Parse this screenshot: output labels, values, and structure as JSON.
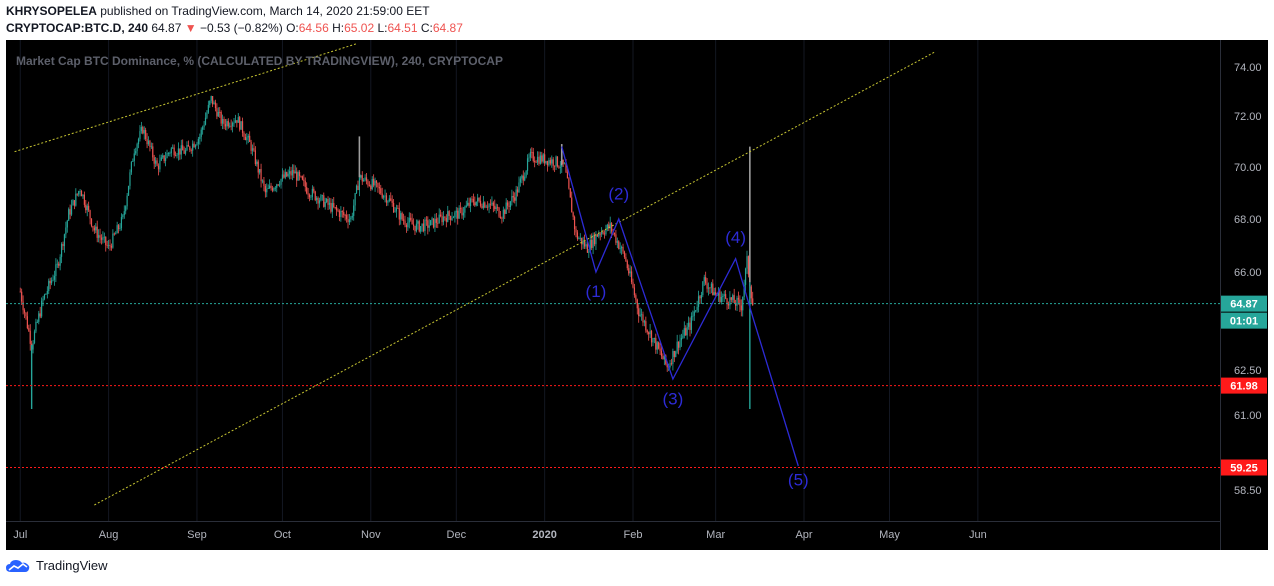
{
  "header": {
    "author": "KHRYSOPELEA",
    "published_text": "published on TradingView.com, March 14, 2020 21:59:00 EET",
    "symbol": "CRYPTOCAP:BTC.D, 240",
    "last": "64.87",
    "change_arrow": "▼",
    "change": "−0.53 (−0.82%)",
    "o_label": "O:",
    "o": "64.56",
    "h_label": "H:",
    "h": "65.02",
    "l_label": "L:",
    "l": "64.51",
    "c_label": "C:",
    "c": "64.87"
  },
  "chart_data": {
    "type": "candlestick",
    "title": "Market Cap BTC Dominance, % (CALCULATED BY TRADINGVIEW), 240, CRYPTOCAP",
    "x_ticks": [
      "Jul",
      "Aug",
      "Sep",
      "Oct",
      "Nov",
      "Dec",
      "2020",
      "Feb",
      "Mar",
      "Apr",
      "May",
      "Jun"
    ],
    "y_ticks": [
      "74.00",
      "72.00",
      "70.00",
      "68.00",
      "66.00",
      "62.50",
      "61.00",
      "58.50"
    ],
    "y_range": [
      57.9,
      75.2
    ],
    "price_path": [
      {
        "x": "2019-07-01",
        "y": 65.3
      },
      {
        "x": "2019-07-05",
        "y": 63.4
      },
      {
        "x": "2019-07-09",
        "y": 65.0
      },
      {
        "x": "2019-07-14",
        "y": 66.2
      },
      {
        "x": "2019-07-18",
        "y": 68.2
      },
      {
        "x": "2019-07-22",
        "y": 69.2
      },
      {
        "x": "2019-07-27",
        "y": 67.6
      },
      {
        "x": "2019-08-01",
        "y": 66.9
      },
      {
        "x": "2019-08-06",
        "y": 68.0
      },
      {
        "x": "2019-08-10",
        "y": 70.7
      },
      {
        "x": "2019-08-13",
        "y": 71.5
      },
      {
        "x": "2019-08-18",
        "y": 70.0
      },
      {
        "x": "2019-08-23",
        "y": 70.7
      },
      {
        "x": "2019-08-28",
        "y": 70.6
      },
      {
        "x": "2019-09-02",
        "y": 71.2
      },
      {
        "x": "2019-09-06",
        "y": 72.7
      },
      {
        "x": "2019-09-10",
        "y": 71.7
      },
      {
        "x": "2019-09-15",
        "y": 71.9
      },
      {
        "x": "2019-09-20",
        "y": 70.8
      },
      {
        "x": "2019-09-25",
        "y": 69.0
      },
      {
        "x": "2019-09-30",
        "y": 69.5
      },
      {
        "x": "2019-10-05",
        "y": 69.8
      },
      {
        "x": "2019-10-10",
        "y": 69.1
      },
      {
        "x": "2019-10-15",
        "y": 68.7
      },
      {
        "x": "2019-10-20",
        "y": 68.3
      },
      {
        "x": "2019-10-25",
        "y": 68.0
      },
      {
        "x": "2019-10-28",
        "y": 69.6
      },
      {
        "x": "2019-11-02",
        "y": 69.3
      },
      {
        "x": "2019-11-07",
        "y": 68.8
      },
      {
        "x": "2019-11-12",
        "y": 68.0
      },
      {
        "x": "2019-11-17",
        "y": 67.7
      },
      {
        "x": "2019-11-22",
        "y": 67.8
      },
      {
        "x": "2019-11-27",
        "y": 68.1
      },
      {
        "x": "2019-12-02",
        "y": 68.2
      },
      {
        "x": "2019-12-07",
        "y": 68.7
      },
      {
        "x": "2019-12-12",
        "y": 68.6
      },
      {
        "x": "2019-12-17",
        "y": 68.2
      },
      {
        "x": "2019-12-22",
        "y": 69.0
      },
      {
        "x": "2019-12-27",
        "y": 70.4
      },
      {
        "x": "2020-01-01",
        "y": 70.3
      },
      {
        "x": "2020-01-05",
        "y": 70.2
      },
      {
        "x": "2020-01-08",
        "y": 70.0
      },
      {
        "x": "2020-01-12",
        "y": 67.4
      },
      {
        "x": "2020-01-16",
        "y": 66.9
      },
      {
        "x": "2020-01-20",
        "y": 67.5
      },
      {
        "x": "2020-01-24",
        "y": 67.7
      },
      {
        "x": "2020-01-29",
        "y": 66.6
      },
      {
        "x": "2020-02-03",
        "y": 64.6
      },
      {
        "x": "2020-02-08",
        "y": 63.6
      },
      {
        "x": "2020-02-13",
        "y": 62.6
      },
      {
        "x": "2020-02-17",
        "y": 63.5
      },
      {
        "x": "2020-02-21",
        "y": 64.1
      },
      {
        "x": "2020-02-26",
        "y": 65.7
      },
      {
        "x": "2020-03-01",
        "y": 65.2
      },
      {
        "x": "2020-03-06",
        "y": 65.0
      },
      {
        "x": "2020-03-10",
        "y": 64.8
      },
      {
        "x": "2020-03-12",
        "y": 66.4
      },
      {
        "x": "2020-03-14",
        "y": 64.87
      }
    ],
    "spikes": [
      {
        "x": "2019-07-05",
        "low": 61.2
      },
      {
        "x": "2019-10-28",
        "high": 71.2
      },
      {
        "x": "2020-01-07",
        "high": 70.9
      },
      {
        "x": "2020-03-13",
        "high": 70.8,
        "low": 61.2
      }
    ],
    "trendlines": [
      {
        "color": "#c8c632",
        "from": {
          "x": "2019-06-29",
          "y": 70.6
        },
        "to": {
          "x": "2019-10-27",
          "y": 74.95
        }
      },
      {
        "color": "#c8c632",
        "from": {
          "x": "2019-07-27",
          "y": 58.0
        },
        "to": {
          "x": "2020-05-17",
          "y": 74.62
        }
      }
    ],
    "horizontal_lines": [
      {
        "value": 64.87,
        "label": "64.87",
        "color": "#26a69a",
        "style": "dotted",
        "countdown": "01:01"
      },
      {
        "value": 61.98,
        "label": "61.98",
        "color": "#ff1a1a",
        "style": "dotted"
      },
      {
        "value": 59.25,
        "label": "59.25",
        "color": "#ff1a1a",
        "style": "dotted"
      }
    ],
    "wave": {
      "color": "#2d2bd6",
      "points": [
        {
          "x": "2020-01-07",
          "y": 70.8
        },
        {
          "x": "2020-01-19",
          "y": 66.0
        },
        {
          "x": "2020-01-27",
          "y": 68.0
        },
        {
          "x": "2020-02-15",
          "y": 62.2
        },
        {
          "x": "2020-03-08",
          "y": 66.5
        },
        {
          "x": "2020-03-14",
          "y": 64.4
        },
        {
          "x": "2020-03-30",
          "y": 59.3
        }
      ],
      "labels": [
        {
          "text": "(1)",
          "x": "2020-01-19",
          "y": 65.1
        },
        {
          "text": "(2)",
          "x": "2020-01-27",
          "y": 68.75
        },
        {
          "text": "(3)",
          "x": "2020-02-15",
          "y": 61.35
        },
        {
          "text": "(4)",
          "x": "2020-03-08",
          "y": 67.1
        },
        {
          "text": "(5)",
          "x": "2020-03-30",
          "y": 58.65
        }
      ]
    }
  },
  "footer": {
    "brand": "TradingView"
  }
}
